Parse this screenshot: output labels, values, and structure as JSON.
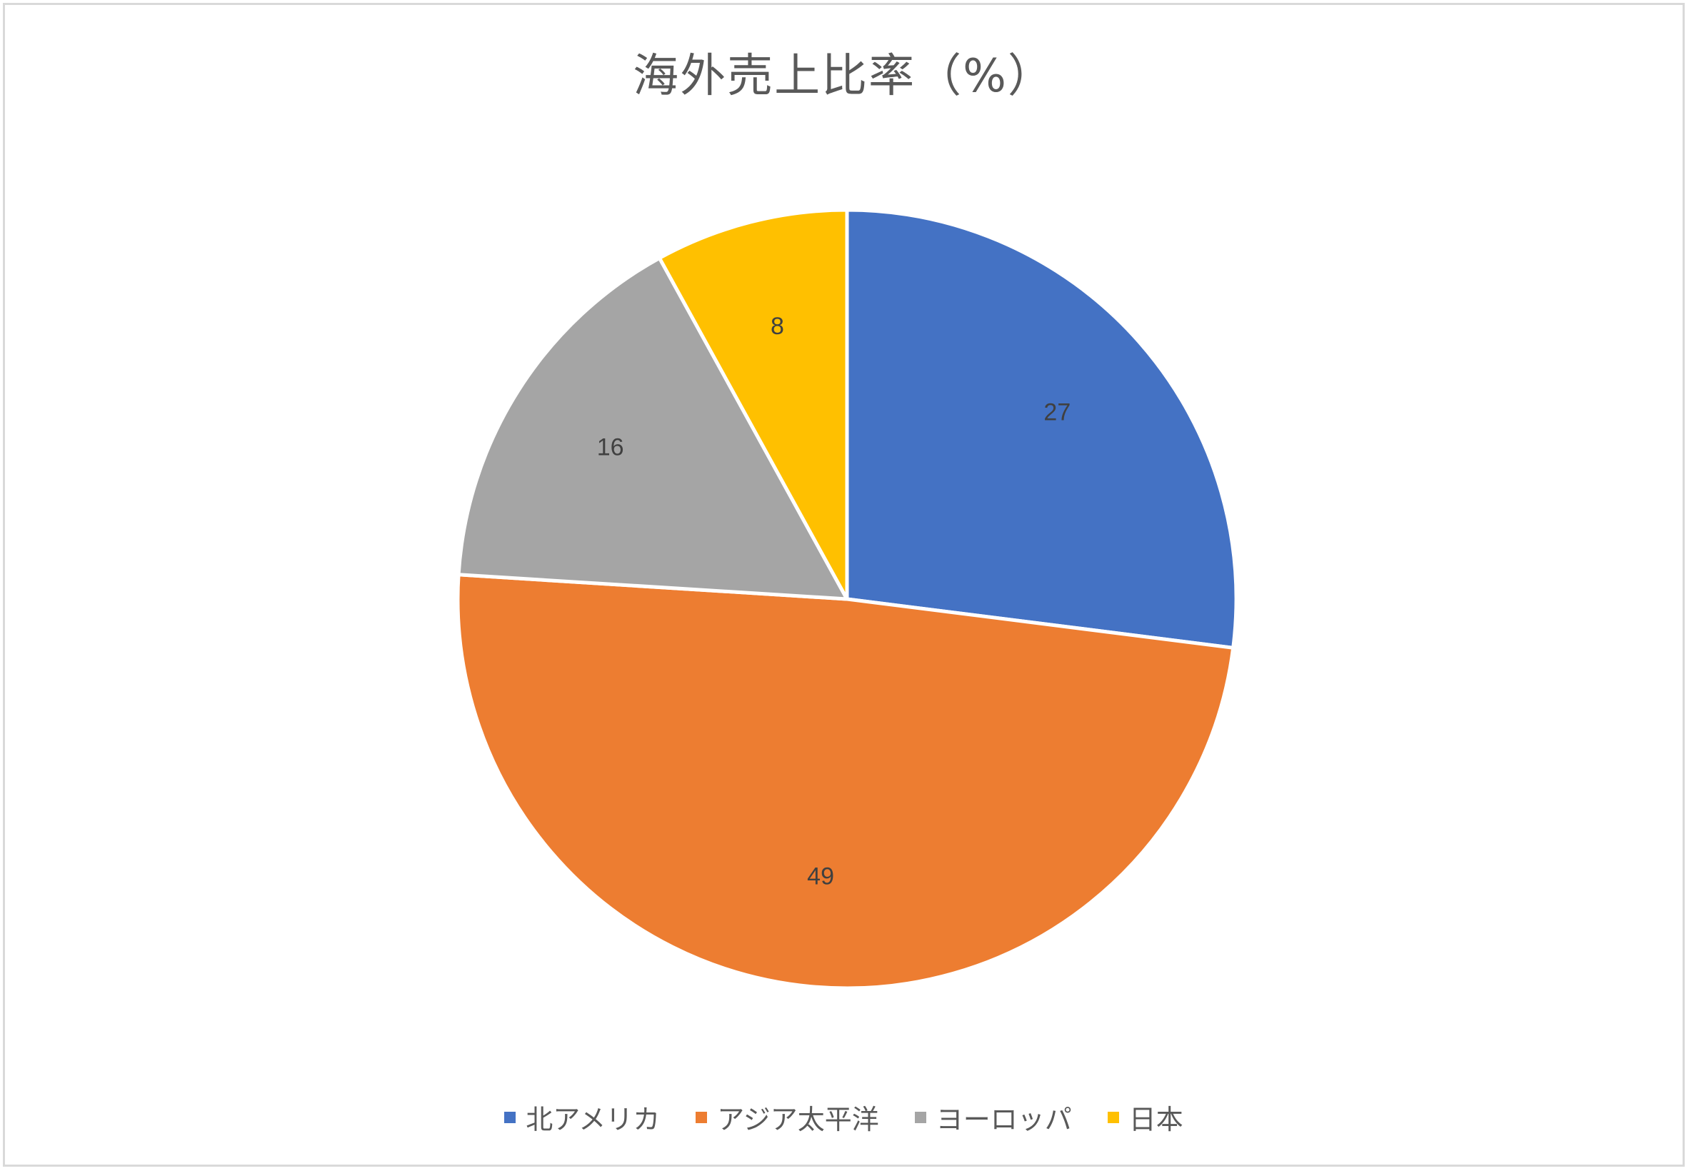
{
  "chart_data": {
    "type": "pie",
    "title": "海外売上比率（%）",
    "categories": [
      "北アメリカ",
      "アジア太平洋",
      "ヨーロッパ",
      "日本"
    ],
    "values": [
      27,
      49,
      16,
      8
    ],
    "colors": [
      "#4472c4",
      "#ed7d31",
      "#a5a5a5",
      "#ffc000"
    ],
    "data_labels": [
      "27",
      "49",
      "16",
      "8"
    ],
    "legend_position": "bottom",
    "start_angle": "top, clockwise"
  }
}
